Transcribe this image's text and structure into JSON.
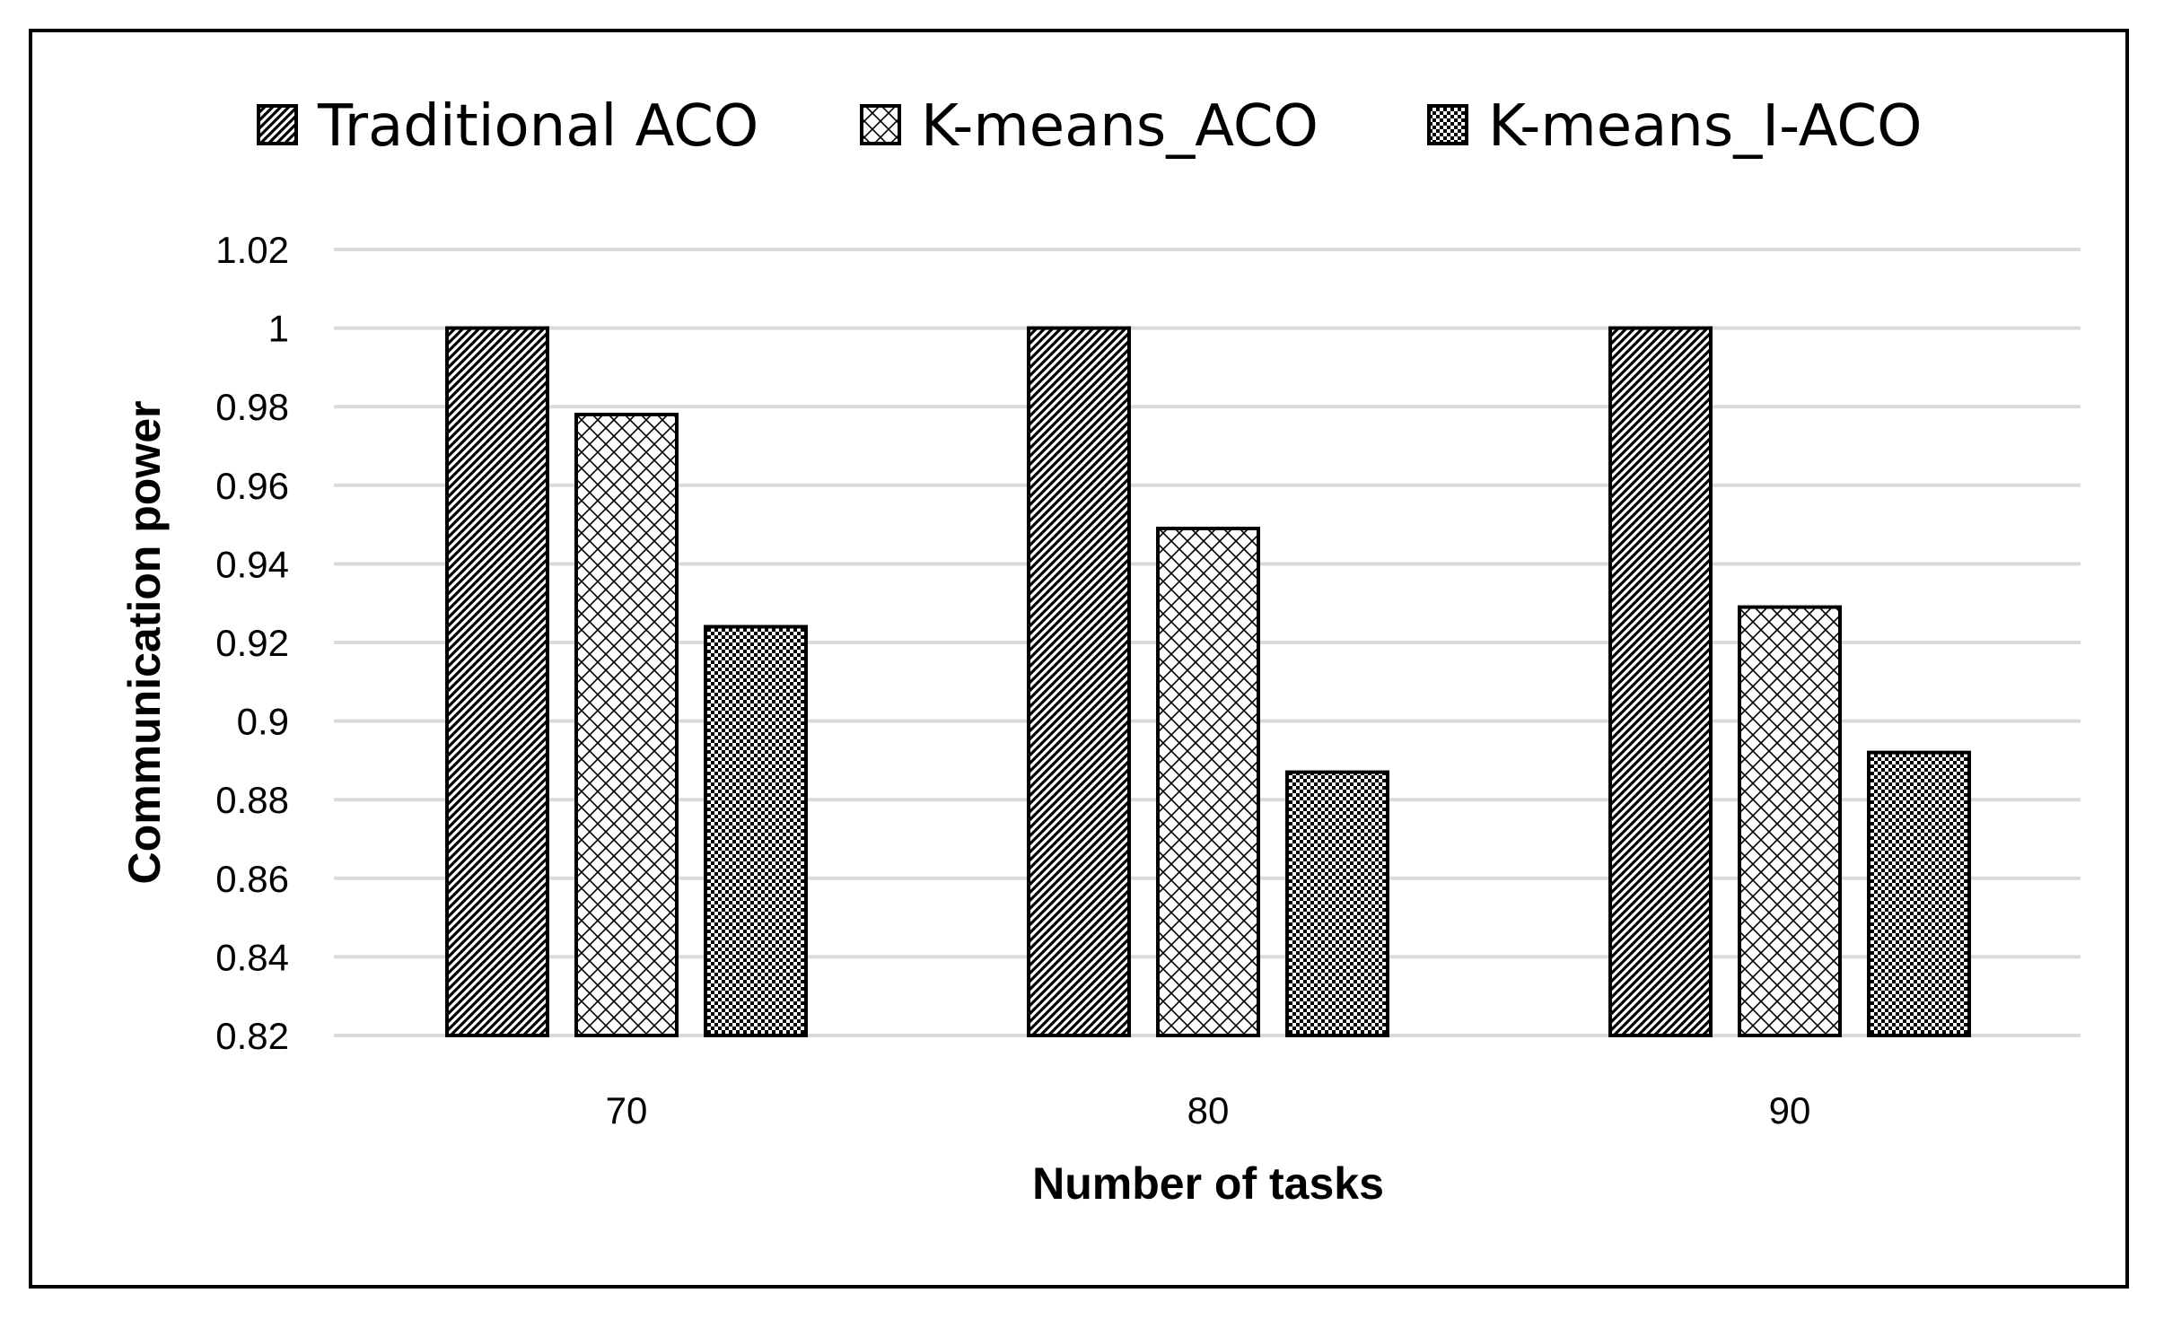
{
  "chart_data": {
    "type": "bar",
    "title": "",
    "xlabel": "Number of tasks",
    "ylabel": "Communication power",
    "categories": [
      "70",
      "80",
      "90"
    ],
    "series": [
      {
        "name": "Traditional ACO",
        "values": [
          1.0,
          1.0,
          1.0
        ],
        "pattern": "diagonal-hatch"
      },
      {
        "name": "K-means_ACO",
        "values": [
          0.978,
          0.949,
          0.929
        ],
        "pattern": "crosshatch"
      },
      {
        "name": "K-means_I-ACO",
        "values": [
          0.924,
          0.887,
          0.892
        ],
        "pattern": "checkerboard"
      }
    ],
    "ylim": [
      0.82,
      1.02
    ],
    "yticks": [
      "0.82",
      "0.84",
      "0.86",
      "0.88",
      "0.9",
      "0.92",
      "0.94",
      "0.96",
      "0.98",
      "1",
      "1.02"
    ],
    "grid": true,
    "legend_position": "top",
    "colors": {
      "bar_outline": "#000000",
      "gridline": "#d9d9d9",
      "background": "#ffffff"
    }
  }
}
